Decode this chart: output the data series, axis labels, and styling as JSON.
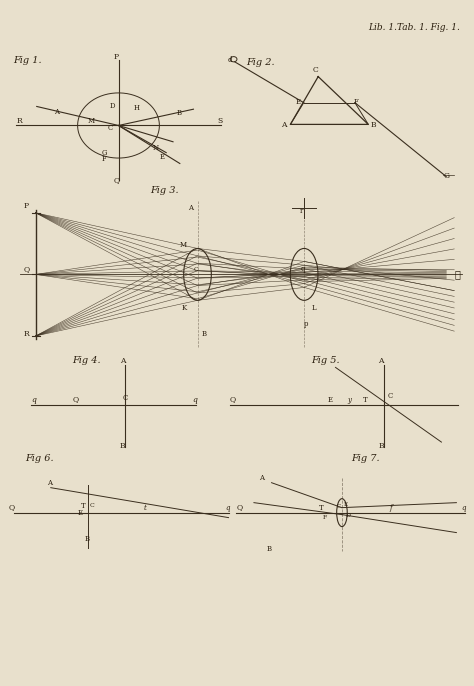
{
  "bg_color": "#e8e0cc",
  "line_color": "#3a2e1e",
  "text_color": "#2a1e0e",
  "fig_width": 4.74,
  "fig_height": 6.86,
  "header_text": "Lib. 1.Tab. 1. Fig. 1.",
  "fig1_label": "Fig 1.",
  "fig2_label": "Fig 2.",
  "fig3_label": "Fig 3.",
  "fig4_label": "Fig 4.",
  "fig5_label": "Fig 5.",
  "fig6_label": "Fig 6.",
  "fig7_label": "Fig 7."
}
